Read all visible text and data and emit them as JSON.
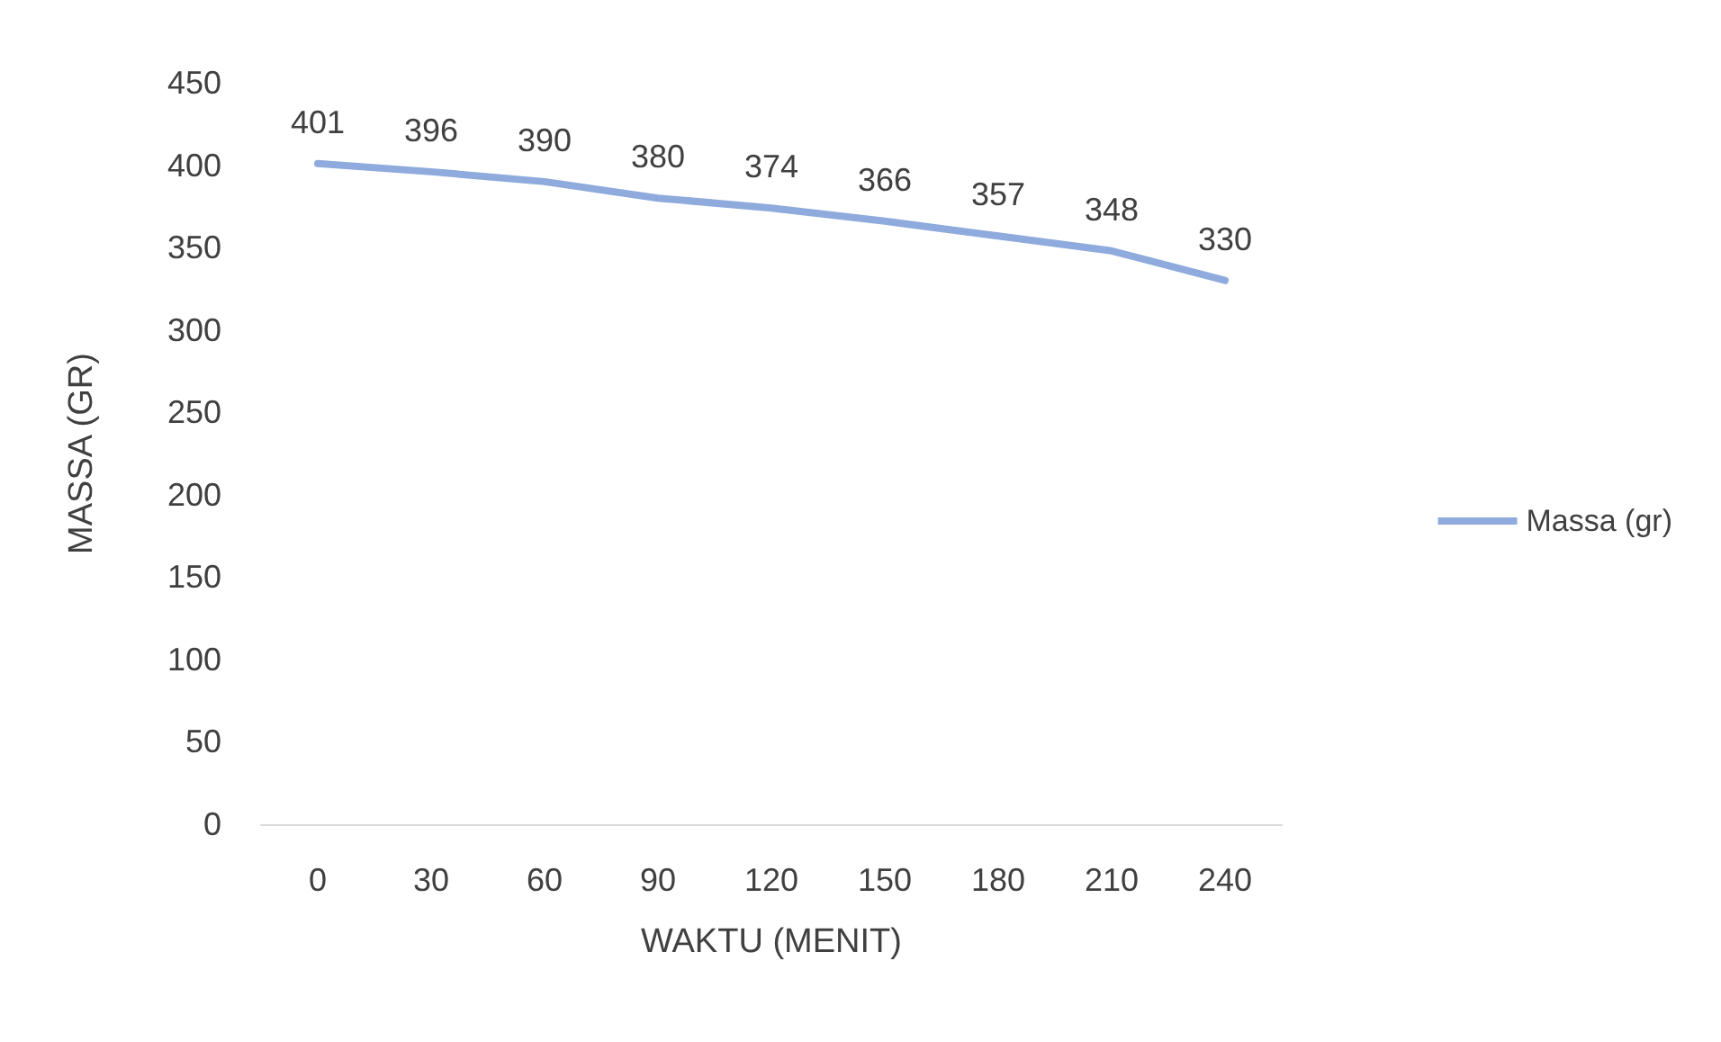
{
  "chart_data": {
    "type": "line",
    "xlabel": "WAKTU (MENIT)",
    "ylabel": "MASSA (GR)",
    "categories": [
      "0",
      "30",
      "60",
      "90",
      "120",
      "150",
      "180",
      "210",
      "240"
    ],
    "series": [
      {
        "name": "Massa (gr)",
        "color": "#8faadc",
        "values": [
          401,
          396,
          390,
          380,
          374,
          366,
          357,
          348,
          330
        ]
      }
    ],
    "ylim": [
      0,
      450
    ],
    "yticks": [
      0,
      50,
      100,
      150,
      200,
      250,
      300,
      350,
      400,
      450
    ],
    "data_labels": true,
    "grid": false,
    "legend": "right",
    "marker": "none",
    "line_style": "solid"
  }
}
